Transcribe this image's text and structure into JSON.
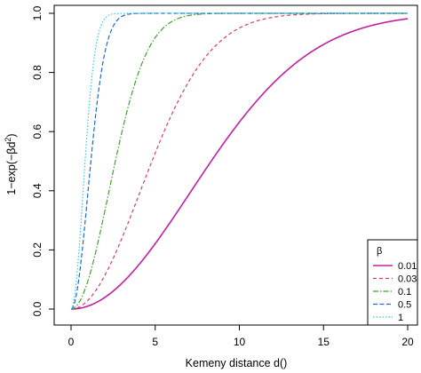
{
  "chart_data": {
    "type": "line",
    "function": "1 - exp(-beta * d^2)",
    "xlabel": "Kemeny distance d()",
    "ylabel_parts": [
      "1−exp(−βd",
      "2",
      ")"
    ],
    "xlim": [
      0,
      20
    ],
    "ylim": [
      0,
      1
    ],
    "x_ticks": [
      0,
      5,
      10,
      15,
      20
    ],
    "x_tick_labels": [
      "0",
      "5",
      "10",
      "15",
      "20"
    ],
    "y_ticks": [
      0.0,
      0.2,
      0.4,
      0.6,
      0.8,
      1.0
    ],
    "y_tick_labels": [
      "0.0",
      "0.2",
      "0.4",
      "0.6",
      "0.8",
      "1.0"
    ],
    "grid": false,
    "legend": {
      "title": "β",
      "placement": "bottom-right"
    },
    "series": [
      {
        "name": "0.01",
        "beta": 0.01,
        "color": "#c020a0",
        "dash": "solid"
      },
      {
        "name": "0.03",
        "beta": 0.03,
        "color": "#d0406a",
        "dash": "dashed"
      },
      {
        "name": "0.1",
        "beta": 0.1,
        "color": "#40a030",
        "dash": "dashdot"
      },
      {
        "name": "0.5",
        "beta": 0.5,
        "color": "#2068c8",
        "dash": "longdash"
      },
      {
        "name": "1",
        "beta": 1,
        "color": "#38c8e0",
        "dash": "dotted"
      }
    ]
  }
}
